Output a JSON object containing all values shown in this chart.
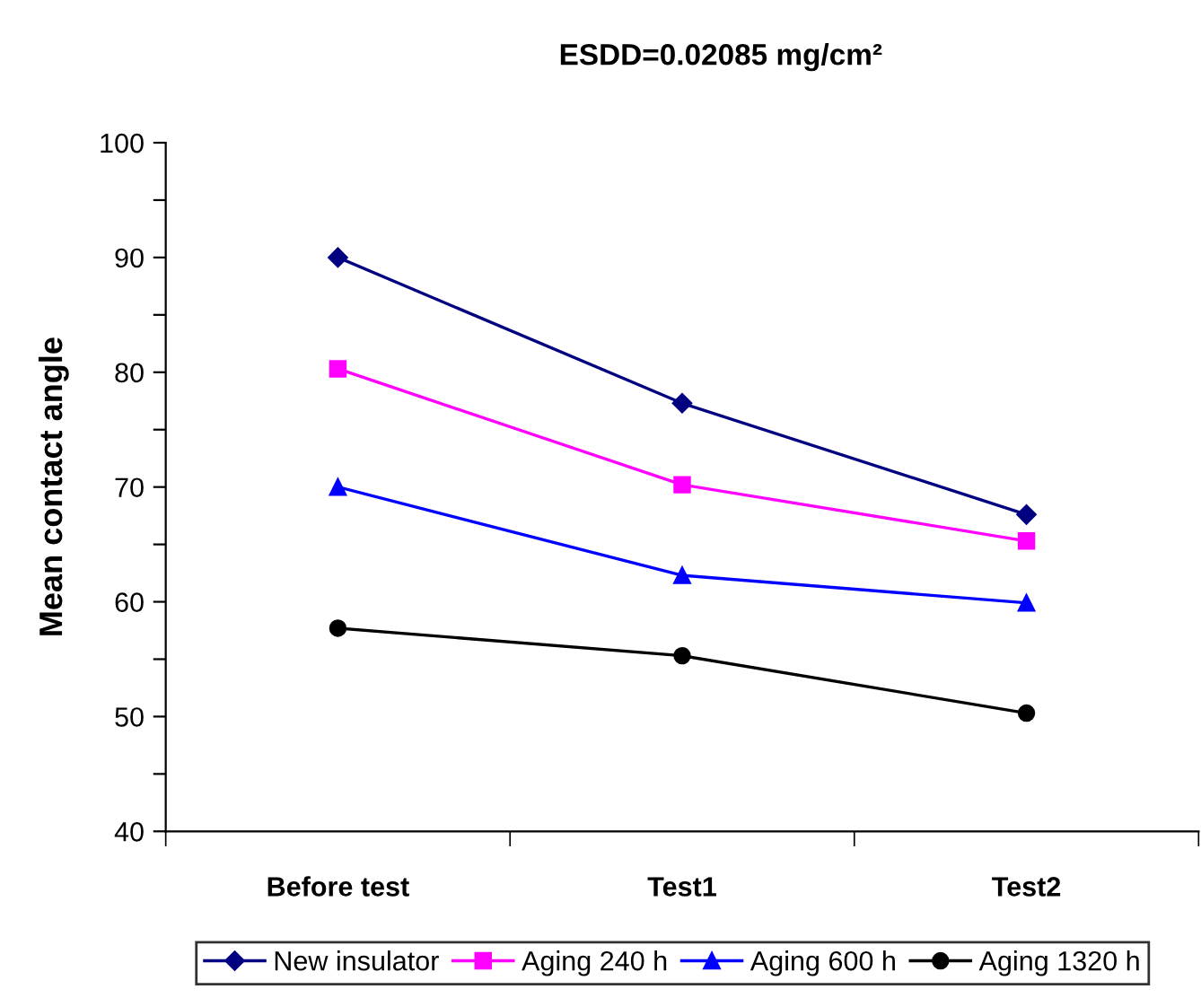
{
  "chart_data": {
    "type": "line",
    "title": "ESDD=0.02085 mg/cm²",
    "ylabel": "Mean contact angle",
    "categories": [
      "Before test",
      "Test1",
      "Test2"
    ],
    "series": [
      {
        "name": "New insulator",
        "color": "#000080",
        "marker": "diamond",
        "values": [
          90.0,
          77.3,
          67.6
        ]
      },
      {
        "name": "Aging 240 h",
        "color": "#ff00ff",
        "marker": "square",
        "values": [
          80.3,
          70.2,
          65.3
        ]
      },
      {
        "name": "Aging 600 h",
        "color": "#0000ff",
        "marker": "triangle",
        "values": [
          70.0,
          62.3,
          59.9
        ]
      },
      {
        "name": "Aging 1320 h",
        "color": "#000000",
        "marker": "circle",
        "values": [
          57.7,
          55.3,
          50.3
        ]
      }
    ],
    "ylim": [
      40,
      100
    ],
    "yticks": [
      40,
      {
        "value": 45,
        "label": null
      },
      50,
      {
        "value": 55,
        "label": null
      },
      60,
      {
        "value": 65,
        "label": null
      },
      70,
      {
        "value": 75,
        "label": null
      },
      80,
      {
        "value": 85,
        "label": null
      },
      90,
      {
        "value": 95,
        "label": null
      },
      100
    ],
    "grid": false,
    "legend": "bottom",
    "line_style": "solid"
  }
}
